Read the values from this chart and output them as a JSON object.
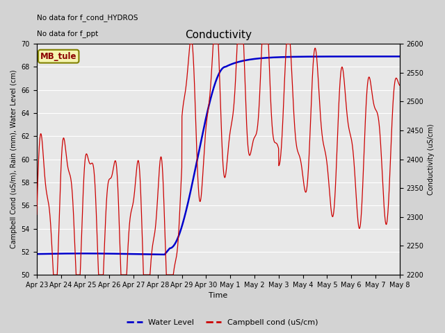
{
  "title": "Conductivity",
  "xlabel": "Time",
  "ylabel_left": "Campbell Cond (uS/m), Rain (mm), Water Level (cm)",
  "ylabel_right": "Conductivity (uS/cm)",
  "ylim_left": [
    50,
    70
  ],
  "ylim_right": [
    2200,
    2600
  ],
  "yticks_left": [
    50,
    52,
    54,
    56,
    58,
    60,
    62,
    64,
    66,
    68,
    70
  ],
  "yticks_right": [
    2200,
    2250,
    2300,
    2350,
    2400,
    2450,
    2500,
    2550,
    2600
  ],
  "annotations": [
    "No data for f_cond_HYDROS",
    "No data for f_ppt"
  ],
  "legend_label_blue": "Water Level",
  "legend_label_red": "Campbell cond (uS/cm)",
  "mb_tule_label": "MB_tule",
  "x_tick_labels": [
    "Apr 23",
    "Apr 24",
    "Apr 25",
    "Apr 26",
    "Apr 27",
    "Apr 28",
    "Apr 29",
    "Apr 30",
    "May 1",
    "May 2",
    "May 3",
    "May 4",
    "May 5",
    "May 6",
    "May 7",
    "May 8"
  ],
  "fig_bg": "#d3d3d3",
  "plot_bg": "#e8e8e8",
  "grid_color": "#ffffff",
  "blue_color": "#0000cc",
  "red_color": "#cc0000"
}
